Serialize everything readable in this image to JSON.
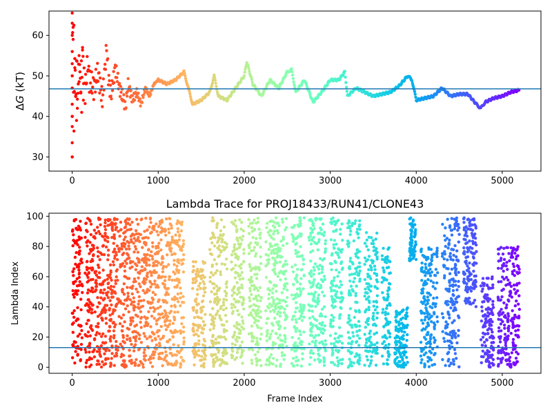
{
  "chart_data": [
    {
      "type": "scatter",
      "title": "",
      "xlabel": "",
      "ylabel": "ΔG (kT)",
      "xlim": [
        -270,
        5450
      ],
      "ylim": [
        26.5,
        66
      ],
      "xticks": [
        0,
        1000,
        2000,
        3000,
        4000,
        5000
      ],
      "yticks": [
        30,
        40,
        50,
        60
      ],
      "grid": false,
      "legend": "none",
      "colormap": "rainbow (red at early frames → purple at late frames)",
      "hline": {
        "y": 46.8,
        "color": "#1f77b4"
      },
      "series": [
        {
          "x": [
            0,
            0,
            0,
            10,
            20,
            30,
            40,
            50,
            60,
            80,
            100,
            120,
            150,
            180,
            200,
            250,
            300,
            350,
            400,
            420,
            450,
            500,
            550,
            600,
            620,
            650,
            700,
            750,
            800,
            850,
            900,
            950,
            1000,
            1100,
            1200,
            1300,
            1350,
            1400,
            1500,
            1600,
            1650,
            1700,
            1800,
            1900,
            2000,
            2030,
            2100,
            2200,
            2300,
            2400,
            2500,
            2550,
            2600,
            2700,
            2800,
            2900,
            3000,
            3100,
            3170,
            3200,
            3300,
            3400,
            3500,
            3600,
            3700,
            3800,
            3900,
            3950,
            4000,
            4100,
            4200,
            4300,
            4400,
            4500,
            4600,
            4700,
            4750,
            4800,
            4900,
            5000,
            5100,
            5200
          ],
          "y": [
            30,
            40,
            50,
            64,
            33,
            58,
            42,
            55,
            45,
            52,
            48,
            55,
            46,
            53,
            49,
            47,
            51,
            44,
            57,
            50,
            45,
            52,
            47,
            44,
            42,
            48,
            44,
            46,
            43,
            47,
            45,
            48,
            49,
            48,
            49,
            51,
            47,
            43,
            44,
            46,
            50,
            45,
            44,
            47,
            50,
            53.5,
            48,
            45,
            49,
            47,
            51,
            51.5,
            46,
            49,
            43.5,
            46,
            49,
            49,
            51,
            45,
            47,
            46,
            45,
            45.5,
            46,
            47.5,
            50,
            49,
            44,
            44.5,
            45,
            47,
            45,
            45.5,
            45.5,
            43,
            42,
            43.5,
            44.5,
            45,
            46,
            46.5
          ]
        }
      ]
    },
    {
      "type": "scatter",
      "title": "Lambda Trace for PROJ18433/RUN41/CLONE43",
      "xlabel": "Frame Index",
      "ylabel": "Lambda Index",
      "xlim": [
        -270,
        5450
      ],
      "ylim": [
        -4,
        102
      ],
      "xticks": [
        0,
        1000,
        2000,
        3000,
        4000,
        5000
      ],
      "yticks": [
        0,
        20,
        40,
        60,
        80,
        100
      ],
      "grid": false,
      "legend": "none",
      "colormap": "rainbow (red at early frames → purple at late frames)",
      "hline": {
        "y": 13,
        "color": "#1f77b4"
      },
      "description_of_distribution": "Dense vertical bands of lambda values spanning 0–99 across frames 0–5200",
      "series": [
        {
          "x_range": [
            0,
            5200
          ],
          "y_range": [
            0,
            99
          ]
        }
      ]
    }
  ]
}
